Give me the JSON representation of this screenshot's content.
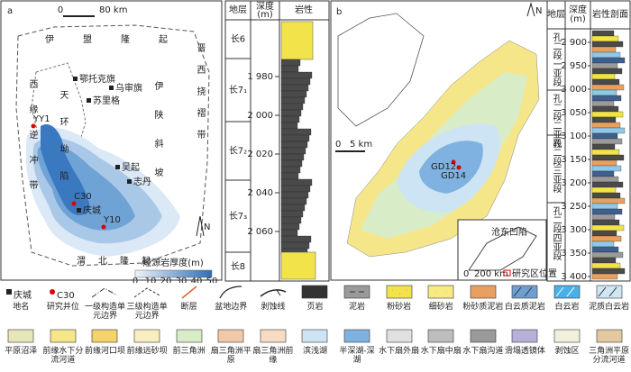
{
  "panel_a": {
    "label": "a",
    "scale": [
      "0",
      "80 km"
    ],
    "regions": [
      "伊盟隆起",
      "晋西挠褶带",
      "天环坳陷",
      "西缘逆冲带",
      "渭北隆起",
      "伊陕斜坡"
    ],
    "places": [
      "鄂托克旗",
      "乌审旗",
      "苏里格",
      "吴起",
      "志丹",
      "庆城"
    ],
    "wells": [
      "YY1",
      "C30",
      "Y10"
    ],
    "north": "N",
    "colorbar": {
      "title": "烃源岩厚度(m)",
      "ticks": [
        "0",
        "10",
        "20",
        "30",
        "40",
        "50"
      ]
    }
  },
  "column_a": {
    "headers": [
      "地层",
      "深度",
      "(m)",
      "岩性"
    ],
    "units": [
      "长6",
      "长7₁",
      "长7₂",
      "长7₃",
      "长8"
    ],
    "depths": [
      "1 980",
      "2 000",
      "2 020",
      "2 040",
      "2 060"
    ]
  },
  "panel_b": {
    "label": "b",
    "scale": [
      "0",
      "5 km"
    ],
    "wells": [
      "GD12",
      "GD14"
    ],
    "north": "N",
    "inset": {
      "name": "沧东凹陷",
      "scale": [
        "0",
        "200 km"
      ],
      "caption": "研究区位置"
    }
  },
  "column_b": {
    "headers": [
      "地层",
      "深度",
      "(m)",
      "岩性剖面"
    ],
    "units": [
      "孔二段一亚段",
      "孔二段二亚段",
      "孔二段三亚段",
      "孔二段四亚段"
    ],
    "depths": [
      "2 900",
      "2 950",
      "3 000",
      "3 050",
      "3 100",
      "3 150",
      "3 200",
      "3 250",
      "3 300",
      "3 350",
      "3 400"
    ]
  },
  "legend": {
    "sample_place": "庆城",
    "sample_well": "C30",
    "row1": [
      "地名",
      "研究井位",
      "一级构造单元边界",
      "三级构造单元边界",
      "断层",
      "盆地边界",
      "剥蚀线",
      "页岩",
      "泥岩",
      "粉砂岩",
      "细砂岩",
      "粉砂质泥岩",
      "白云质泥岩",
      "白云岩",
      "泥质白云岩"
    ],
    "row2": [
      "平原沼泽",
      "前缘水下分流河道",
      "前缘河口坝",
      "前缘远砂坝",
      "前三角洲",
      "扇三角洲平原",
      "扇三角洲前缘",
      "滨浅湖",
      "半深湖-深湖",
      "水下扇外扇",
      "水下扇中扇",
      "水下扇沟道",
      "滑塌透镜体",
      "剥蚀区",
      "三角洲平原分流河道"
    ]
  }
}
